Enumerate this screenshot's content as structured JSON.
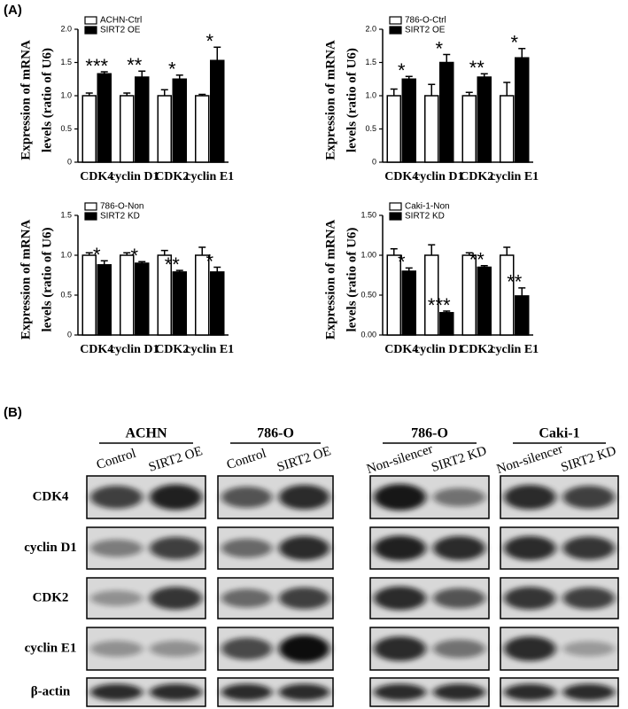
{
  "panel_a_label": "(A)",
  "panel_b_label": "(B)",
  "chart_data": [
    {
      "type": "bar",
      "ylabel": [
        "Expression of mRNA",
        "levels (ratio of U6)"
      ],
      "categories": [
        "CDK4",
        "cyclin D1",
        "CDK2",
        "cyclin E1"
      ],
      "ylim": [
        0,
        2
      ],
      "yticks": [
        0,
        0.5,
        {
          "value": 1,
          "label": "1.0"
        },
        1.5,
        {
          "value": 2,
          "label": "2.0"
        }
      ],
      "series": [
        {
          "name": "ACHN-Ctrl",
          "color": "#ffffff",
          "values": [
            1,
            1,
            1,
            1
          ],
          "errors": [
            0.04,
            0.04,
            0.09,
            0.02
          ]
        },
        {
          "name": "SIRT2 OE",
          "color": "#000000",
          "values": [
            1.33,
            1.28,
            1.25,
            1.53
          ],
          "errors": [
            0.03,
            0.09,
            0.06,
            0.2
          ],
          "significance": [
            "***",
            "**",
            "*",
            "*"
          ]
        }
      ]
    },
    {
      "type": "bar",
      "ylabel": [
        "Expression of mRNA",
        "levels (ratio of U6)"
      ],
      "categories": [
        "CDK4",
        "cyclin D1",
        "CDK2",
        "cyclin E1"
      ],
      "ylim": [
        0,
        2
      ],
      "yticks": [
        0,
        0.5,
        {
          "value": 1,
          "label": "1.0"
        },
        1.5,
        {
          "value": 2,
          "label": "2.0"
        }
      ],
      "series": [
        {
          "name": "786-O-Ctrl",
          "color": "#ffffff",
          "values": [
            1,
            1,
            1,
            1
          ],
          "errors": [
            0.1,
            0.17,
            0.05,
            0.2
          ]
        },
        {
          "name": "SIRT2 OE",
          "color": "#000000",
          "values": [
            1.25,
            1.5,
            1.28,
            1.57
          ],
          "errors": [
            0.04,
            0.12,
            0.05,
            0.14
          ],
          "significance": [
            "*",
            "*",
            "**",
            "*"
          ]
        }
      ]
    },
    {
      "type": "bar",
      "ylabel": [
        "Expression of mRNA",
        "levels (ratio of U6)"
      ],
      "categories": [
        "CDK4",
        "cyclin D1",
        "CDK2",
        "cyclin E1"
      ],
      "ylim": [
        0,
        1.5
      ],
      "yticks": [
        0,
        0.5,
        {
          "value": 1,
          "label": "1.0"
        },
        1.5
      ],
      "series": [
        {
          "name": "786-O-Non",
          "color": "#ffffff",
          "values": [
            1,
            1,
            1,
            1
          ],
          "errors": [
            0.03,
            0.03,
            0.06,
            0.1
          ]
        },
        {
          "name": "SIRT2 KD",
          "color": "#000000",
          "values": [
            0.88,
            0.9,
            0.79,
            0.79
          ],
          "errors": [
            0.05,
            0.02,
            0.02,
            0.06
          ],
          "significance": [
            "*",
            "*",
            "**",
            "*"
          ]
        }
      ]
    },
    {
      "type": "bar",
      "ylabel": [
        "Expression of mRNA",
        "levels (ratio of U6)"
      ],
      "categories": [
        "CDK4",
        "cyclin D1",
        "CDK2",
        "cyclin E1"
      ],
      "ylim": [
        0,
        1.5
      ],
      "yticks": [
        {
          "value": 0,
          "label": "0.00"
        },
        {
          "value": 0.5,
          "label": "0.50"
        },
        {
          "value": 1,
          "label": "1.00"
        },
        {
          "value": 1.5,
          "label": "1.50"
        }
      ],
      "series": [
        {
          "name": "Caki-1-Non",
          "color": "#ffffff",
          "values": [
            1,
            1,
            1,
            1
          ],
          "errors": [
            0.08,
            0.13,
            0.03,
            0.1
          ]
        },
        {
          "name": "SIRT2 KD",
          "color": "#000000",
          "values": [
            0.8,
            0.28,
            0.85,
            0.49
          ],
          "errors": [
            0.04,
            0.02,
            0.02,
            0.1
          ],
          "significance": [
            "*",
            "***",
            "**",
            "**"
          ]
        }
      ]
    }
  ],
  "blots": {
    "groups": [
      {
        "cell_line": "ACHN",
        "lanes": [
          "Control",
          "SIRT2 OE"
        ]
      },
      {
        "cell_line": "786-O",
        "lanes": [
          "Control",
          "SIRT2 OE"
        ]
      },
      {
        "cell_line": "786-O",
        "lanes": [
          "Non-silencer",
          "SIRT2 KD"
        ]
      },
      {
        "cell_line": "Caki-1",
        "lanes": [
          "Non-silencer",
          "SIRT2 KD"
        ]
      }
    ],
    "proteins": [
      "CDK4",
      "cyclin D1",
      "CDK2",
      "cyclin E1",
      "β-actin"
    ]
  }
}
